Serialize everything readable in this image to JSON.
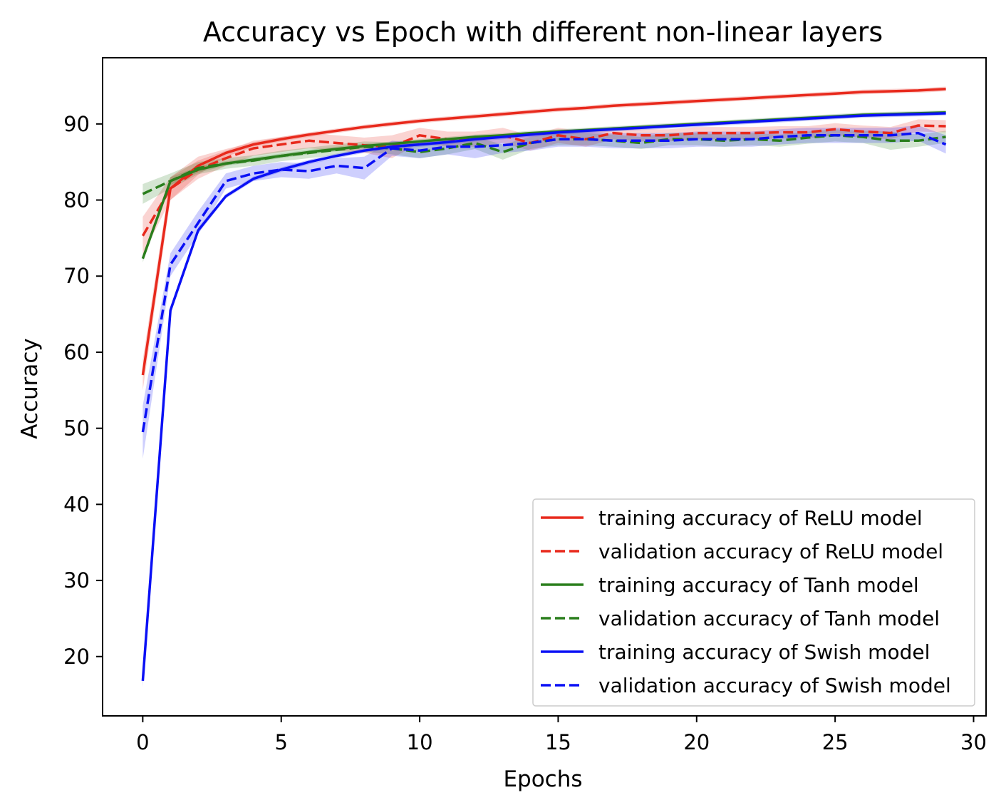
{
  "chart_data": {
    "type": "line",
    "title": "Accuracy vs Epoch with different non-linear layers",
    "xlabel": "Epochs",
    "ylabel": "Accuracy",
    "xlim": [
      -1.45,
      30.45
    ],
    "ylim": [
      12.2,
      98.7
    ],
    "xticks": [
      0,
      5,
      10,
      15,
      20,
      25,
      30
    ],
    "yticks": [
      20,
      30,
      40,
      50,
      60,
      70,
      80,
      90
    ],
    "grid": false,
    "legend_position": "lower-right",
    "x": [
      0,
      1,
      2,
      3,
      4,
      5,
      6,
      7,
      8,
      9,
      10,
      11,
      12,
      13,
      14,
      15,
      16,
      17,
      18,
      19,
      20,
      21,
      22,
      23,
      24,
      25,
      26,
      27,
      28,
      29
    ],
    "series": [
      {
        "name": "training accuracy of ReLU model",
        "color": "#e8291c",
        "dash": "solid",
        "values": [
          57.0,
          81.5,
          84.5,
          86.2,
          87.3,
          88.0,
          88.6,
          89.1,
          89.6,
          90.0,
          90.4,
          90.7,
          91.0,
          91.3,
          91.6,
          91.9,
          92.1,
          92.4,
          92.6,
          92.8,
          93.0,
          93.2,
          93.4,
          93.6,
          93.8,
          94.0,
          94.2,
          94.3,
          94.4,
          94.6
        ],
        "band": [
          2,
          1.5,
          1.2,
          0.5,
          0.3,
          0.3,
          0.3,
          0.3,
          0.3,
          0.3,
          0.3,
          0.3,
          0.3,
          0.3,
          0.3,
          0.3,
          0.3,
          0.3,
          0.3,
          0.3,
          0.3,
          0.3,
          0.3,
          0.3,
          0.3,
          0.3,
          0.3,
          0.3,
          0.3,
          0.3
        ]
      },
      {
        "name": "validation accuracy of ReLU model",
        "color": "#e8291c",
        "dash": "dashed",
        "values": [
          75.3,
          81.5,
          84.0,
          85.5,
          86.8,
          87.3,
          87.8,
          87.5,
          87.2,
          87.0,
          88.5,
          88.0,
          88.0,
          88.5,
          87.5,
          88.5,
          88.0,
          88.8,
          88.5,
          88.5,
          88.8,
          88.8,
          88.8,
          88.9,
          88.9,
          89.3,
          89.0,
          88.8,
          89.8,
          89.7
        ],
        "band": [
          2.5,
          1.5,
          1.2,
          1.0,
          1.0,
          1.0,
          1.0,
          1.0,
          1.0,
          1.5,
          1.0,
          1.0,
          1.0,
          1.0,
          1.0,
          1.0,
          1.0,
          0.8,
          0.8,
          0.8,
          0.8,
          0.8,
          0.8,
          0.8,
          0.8,
          0.8,
          0.8,
          0.8,
          0.8,
          0.8
        ]
      },
      {
        "name": "training accuracy of Tanh model",
        "color": "#2a7e1c",
        "dash": "solid",
        "values": [
          72.3,
          82.5,
          84.0,
          84.8,
          85.3,
          85.8,
          86.3,
          86.7,
          87.1,
          87.4,
          87.7,
          88.0,
          88.3,
          88.5,
          88.8,
          89.0,
          89.2,
          89.4,
          89.6,
          89.8,
          90.0,
          90.2,
          90.4,
          90.6,
          90.8,
          91.0,
          91.2,
          91.3,
          91.4,
          91.5
        ],
        "band": [
          0.5,
          0.5,
          0.4,
          0.3,
          0.3,
          0.3,
          0.3,
          0.3,
          0.3,
          0.3,
          0.3,
          0.3,
          0.3,
          0.3,
          0.3,
          0.3,
          0.3,
          0.3,
          0.3,
          0.3,
          0.3,
          0.3,
          0.3,
          0.3,
          0.3,
          0.3,
          0.3,
          0.3,
          0.3,
          0.3
        ]
      },
      {
        "name": "validation accuracy of Tanh model",
        "color": "#2a7e1c",
        "dash": "dashed",
        "values": [
          80.8,
          82.5,
          84.2,
          84.8,
          85.2,
          85.8,
          86.2,
          86.6,
          87.0,
          86.8,
          86.3,
          86.8,
          87.5,
          86.3,
          87.5,
          88.0,
          88.0,
          87.8,
          87.5,
          88.0,
          88.0,
          87.8,
          88.0,
          87.8,
          88.2,
          88.5,
          88.3,
          87.8,
          87.8,
          88.3
        ],
        "band": [
          1.3,
          1.0,
          0.8,
          0.7,
          0.7,
          0.7,
          0.7,
          0.7,
          0.7,
          0.8,
          0.8,
          0.8,
          0.8,
          1.0,
          0.8,
          0.8,
          0.8,
          0.8,
          0.8,
          0.8,
          0.8,
          0.8,
          0.8,
          0.8,
          0.8,
          0.8,
          0.8,
          1.2,
          0.8,
          0.8
        ]
      },
      {
        "name": "training accuracy of Swish model",
        "color": "#0a10f5",
        "dash": "solid",
        "values": [
          16.8,
          65.5,
          76.0,
          80.5,
          82.8,
          84.0,
          85.0,
          85.8,
          86.5,
          87.0,
          87.3,
          87.6,
          88.0,
          88.3,
          88.6,
          88.9,
          89.1,
          89.3,
          89.5,
          89.7,
          89.9,
          90.1,
          90.3,
          90.5,
          90.7,
          90.9,
          91.1,
          91.2,
          91.3,
          91.4
        ],
        "band": [
          0.8,
          0.5,
          0.4,
          0.3,
          0.3,
          0.3,
          0.3,
          0.3,
          0.3,
          0.3,
          0.3,
          0.3,
          0.3,
          0.3,
          0.3,
          0.3,
          0.3,
          0.3,
          0.3,
          0.3,
          0.3,
          0.3,
          0.3,
          0.3,
          0.3,
          0.3,
          0.3,
          0.3,
          0.3,
          0.3
        ]
      },
      {
        "name": "validation accuracy of Swish model",
        "color": "#0a10f5",
        "dash": "dashed",
        "values": [
          49.5,
          71.5,
          77.0,
          82.5,
          83.5,
          84.0,
          83.8,
          84.5,
          84.2,
          86.8,
          86.5,
          87.0,
          87.0,
          87.2,
          87.5,
          88.0,
          88.0,
          87.8,
          87.8,
          87.8,
          88.0,
          88.0,
          88.0,
          88.3,
          88.5,
          88.5,
          88.5,
          88.5,
          88.8,
          87.3
        ],
        "band": [
          3.5,
          1.5,
          1.5,
          1.0,
          1.0,
          1.0,
          1.0,
          1.0,
          1.5,
          1.0,
          1.0,
          1.0,
          1.5,
          1.0,
          1.0,
          1.0,
          1.0,
          1.0,
          1.0,
          1.0,
          1.0,
          1.0,
          1.0,
          1.0,
          1.0,
          1.0,
          1.0,
          1.0,
          1.0,
          1.2
        ]
      }
    ]
  }
}
